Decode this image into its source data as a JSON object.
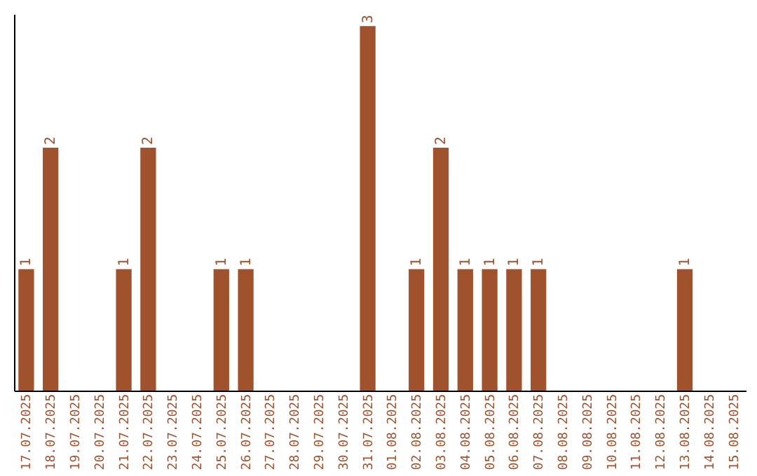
{
  "chart_data": {
    "type": "bar",
    "categories": [
      "17.07.2025",
      "18.07.2025",
      "19.07.2025",
      "20.07.2025",
      "21.07.2025",
      "22.07.2025",
      "23.07.2025",
      "24.07.2025",
      "25.07.2025",
      "26.07.2025",
      "27.07.2025",
      "28.07.2025",
      "29.07.2025",
      "30.07.2025",
      "31.07.2025",
      "01.08.2025",
      "02.08.2025",
      "03.08.2025",
      "04.08.2025",
      "05.08.2025",
      "06.08.2025",
      "07.08.2025",
      "08.08.2025",
      "09.08.2025",
      "10.08.2025",
      "11.08.2025",
      "12.08.2025",
      "13.08.2025",
      "14.08.2025",
      "15.08.2025"
    ],
    "values": [
      1,
      2,
      0,
      0,
      1,
      2,
      0,
      0,
      1,
      1,
      0,
      0,
      0,
      0,
      3,
      0,
      1,
      2,
      1,
      1,
      1,
      1,
      0,
      0,
      0,
      0,
      0,
      1,
      0,
      0
    ],
    "value_labels": [
      "1",
      "2",
      null,
      null,
      "1",
      "2",
      null,
      null,
      "1",
      "1",
      null,
      null,
      null,
      null,
      "3",
      null,
      "1",
      "2",
      "1",
      "1",
      "1",
      "1",
      null,
      null,
      null,
      null,
      null,
      "1",
      null,
      null
    ],
    "color": "#a0522d",
    "ylim": [
      0,
      3.1
    ],
    "tick_labels": "x",
    "grid": false
  }
}
